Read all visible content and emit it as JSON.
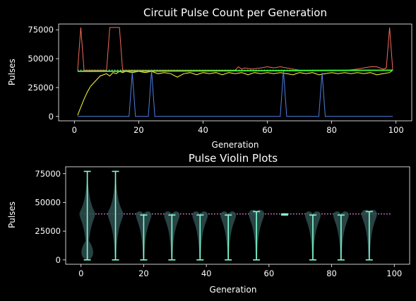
{
  "chart_data": [
    {
      "type": "line",
      "title": "Circuit Pulse Count per Generation",
      "xlabel": "Generation",
      "ylabel": "Pulses",
      "xlim": [
        -4.9,
        104.9
      ],
      "ylim": [
        -3800,
        80000
      ],
      "x_ticks": [
        0,
        20,
        40,
        60,
        80,
        100
      ],
      "x_tick_labels": [
        "0",
        "20",
        "40",
        "60",
        "80",
        "100"
      ],
      "y_ticks": [
        0,
        25000,
        50000,
        75000
      ],
      "y_tick_labels": [
        "0",
        "25000",
        "50000",
        "75000"
      ],
      "background": "#000000",
      "series": [
        {
          "color": "#f26b5b",
          "points": [
            [
              1,
              40000
            ],
            [
              2,
              77000
            ],
            [
              3,
              40000
            ],
            [
              10,
              40000
            ],
            [
              11,
              77000
            ],
            [
              12,
              77000
            ],
            [
              13,
              77000
            ],
            [
              14,
              77000
            ],
            [
              15,
              40000
            ],
            [
              40,
              40000
            ],
            [
              50,
              40000
            ],
            [
              51,
              43000
            ],
            [
              52,
              41000
            ],
            [
              53,
              42000
            ],
            [
              55,
              41000
            ],
            [
              58,
              42000
            ],
            [
              60,
              43000
            ],
            [
              62,
              42000
            ],
            [
              64,
              43000
            ],
            [
              66,
              42000
            ],
            [
              68,
              41000
            ],
            [
              70,
              40000
            ],
            [
              75,
              40000
            ],
            [
              80,
              40000
            ],
            [
              85,
              40000
            ],
            [
              88,
              41000
            ],
            [
              90,
              42000
            ],
            [
              92,
              43000
            ],
            [
              94,
              43000
            ],
            [
              96,
              41000
            ],
            [
              97,
              42000
            ],
            [
              98,
              77000
            ],
            [
              99,
              40000
            ]
          ]
        },
        {
          "color": "#ffff33",
          "points": [
            [
              1,
              1000
            ],
            [
              2,
              8000
            ],
            [
              3,
              15000
            ],
            [
              4,
              21000
            ],
            [
              5,
              26000
            ],
            [
              6,
              29000
            ],
            [
              7,
              32000
            ],
            [
              8,
              35000
            ],
            [
              9,
              36000
            ],
            [
              10,
              37000
            ],
            [
              11,
              35000
            ],
            [
              12,
              38000
            ],
            [
              13,
              37000
            ],
            [
              14,
              39000
            ],
            [
              15,
              38000
            ],
            [
              16,
              39000
            ],
            [
              18,
              38000
            ],
            [
              20,
              39000
            ],
            [
              22,
              38000
            ],
            [
              24,
              39000
            ],
            [
              26,
              37000
            ],
            [
              28,
              38000
            ],
            [
              30,
              37000
            ],
            [
              32,
              34000
            ],
            [
              34,
              37000
            ],
            [
              36,
              38000
            ],
            [
              38,
              36000
            ],
            [
              40,
              38000
            ],
            [
              42,
              37000
            ],
            [
              44,
              38000
            ],
            [
              46,
              36000
            ],
            [
              48,
              38000
            ],
            [
              50,
              37000
            ],
            [
              52,
              38000
            ],
            [
              54,
              36000
            ],
            [
              56,
              38000
            ],
            [
              58,
              37000
            ],
            [
              60,
              38000
            ],
            [
              62,
              37000
            ],
            [
              64,
              38000
            ],
            [
              66,
              37000
            ],
            [
              68,
              36000
            ],
            [
              70,
              38000
            ],
            [
              72,
              37000
            ],
            [
              74,
              38000
            ],
            [
              76,
              36000
            ],
            [
              78,
              37000
            ],
            [
              80,
              38000
            ],
            [
              82,
              37000
            ],
            [
              84,
              38000
            ],
            [
              86,
              37000
            ],
            [
              88,
              38000
            ],
            [
              90,
              37000
            ],
            [
              92,
              38000
            ],
            [
              94,
              36000
            ],
            [
              96,
              37000
            ],
            [
              98,
              38000
            ],
            [
              99,
              40000
            ]
          ]
        },
        {
          "color": "#4f7fe0",
          "points": [
            [
              1,
              0
            ],
            [
              17,
              0
            ],
            [
              18,
              38000
            ],
            [
              19,
              0
            ],
            [
              23,
              0
            ],
            [
              24,
              40000
            ],
            [
              25,
              0
            ],
            [
              64,
              0
            ],
            [
              65,
              40000
            ],
            [
              66,
              0
            ],
            [
              76,
              0
            ],
            [
              77,
              38000
            ],
            [
              78,
              0
            ],
            [
              99,
              0
            ]
          ]
        },
        {
          "color": "#33ff33",
          "points": [
            [
              1,
              39000
            ],
            [
              99,
              40000
            ]
          ]
        }
      ],
      "reference_line": {
        "y": 40000,
        "color": "#c0c0c0",
        "style": "dotted"
      }
    },
    {
      "type": "violin",
      "title": "Pulse Violin Plots",
      "xlabel": "Generation",
      "ylabel": "Pulses",
      "xlim": [
        -4.9,
        104.9
      ],
      "ylim": [
        -3800,
        81000
      ],
      "x_ticks": [
        0,
        20,
        40,
        60,
        80,
        100
      ],
      "x_tick_labels": [
        "0",
        "20",
        "40",
        "60",
        "80",
        "100"
      ],
      "y_ticks": [
        0,
        25000,
        50000,
        75000
      ],
      "y_tick_labels": [
        "0",
        "25000",
        "50000",
        "75000"
      ],
      "body_color": "#2f4f4f",
      "line_color": "#7fffd4",
      "violins": [
        {
          "x": 2,
          "min": 0,
          "max": 77000
        },
        {
          "x": 11,
          "min": 0,
          "max": 77000
        },
        {
          "x": 20,
          "min": 0,
          "max": 39000
        },
        {
          "x": 29,
          "min": 0,
          "max": 39000
        },
        {
          "x": 38,
          "min": 0,
          "max": 39000
        },
        {
          "x": 47,
          "min": 0,
          "max": 39000
        },
        {
          "x": 56,
          "min": 0,
          "max": 42000
        },
        {
          "x": 65,
          "min": 39000,
          "max": 40000
        },
        {
          "x": 74,
          "min": 0,
          "max": 39000
        },
        {
          "x": 83,
          "min": 0,
          "max": 39000
        },
        {
          "x": 92,
          "min": 0,
          "max": 42000
        }
      ],
      "reference_line": {
        "y": 40000,
        "x_range": [
          1,
          99
        ],
        "color": "#ee82ee",
        "style": "dotted"
      }
    }
  ]
}
